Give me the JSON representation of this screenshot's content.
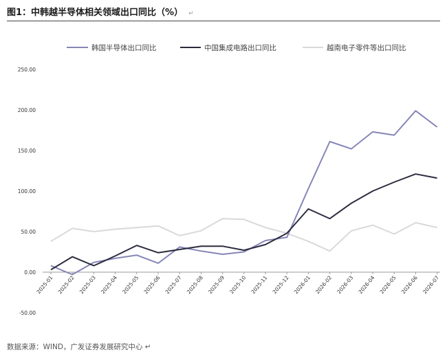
{
  "figure": {
    "title": "图1：中韩越半导体相关领域出口同比（%）",
    "para_mark": "↵",
    "source": "数据来源：WIND，广发证券发展研究中心 ↵"
  },
  "colors": {
    "korea": "#8585b8",
    "china": "#2b2b3d",
    "vietnam": "#d9d9d9",
    "axis": "#9a9a9a"
  },
  "chart_data": {
    "type": "line",
    "title": "",
    "xlabel": "",
    "ylabel": "",
    "ylim": [
      -50,
      250
    ],
    "yticks": [
      "250.00",
      "200.00",
      "150.00",
      "100.00",
      "50.00",
      "0.00",
      "-50.00"
    ],
    "ytick_values": [
      250,
      200,
      150,
      100,
      50,
      0,
      -50
    ],
    "grid": false,
    "legend_position": "top",
    "categories": [
      "2025-01",
      "2025-02",
      "2025-03",
      "2025-04",
      "2025-05",
      "2025-06",
      "2025-07",
      "2025-08",
      "2025-09",
      "2025-10",
      "2025-11",
      "2025-12",
      "2026-01",
      "2026-02",
      "2026-03",
      "2026-04",
      "2026-05",
      "2026-06",
      "2026-07"
    ],
    "series": [
      {
        "name": "韩国半导体出口同比",
        "key": "korea",
        "values": [
          8,
          -3,
          12,
          17,
          21,
          11,
          31,
          26,
          22,
          25,
          39,
          43,
          103,
          161,
          152,
          173,
          169,
          199,
          179
        ]
      },
      {
        "name": "中国集成电路出口同比",
        "key": "china",
        "values": [
          3,
          19,
          8,
          20,
          33,
          24,
          28,
          32,
          32,
          27,
          34,
          48,
          78,
          66,
          85,
          100,
          111,
          121,
          116
        ]
      },
      {
        "name": "越南电子零件等出口同比",
        "key": "vietnam",
        "values": [
          38,
          54,
          50,
          53,
          55,
          57,
          45,
          51,
          66,
          65,
          55,
          48,
          38,
          26,
          51,
          58,
          47,
          61,
          55
        ]
      }
    ]
  }
}
